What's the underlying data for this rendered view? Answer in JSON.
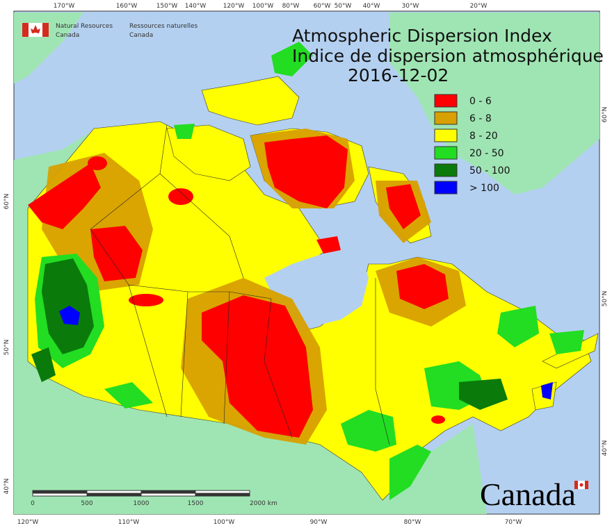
{
  "header": {
    "title": "Atmospheric Dispersion Index",
    "title_fr": "Indice de dispersion atmosphérique",
    "date": "2016-12-02"
  },
  "agency": {
    "name_en": [
      "Natural Resources",
      "Canada"
    ],
    "name_fr": [
      "Ressources naturelles",
      "Canada"
    ]
  },
  "legend": {
    "items": [
      {
        "label": "0 - 6",
        "color": "#ff0000"
      },
      {
        "label": "6 - 8",
        "color": "#d8a000"
      },
      {
        "label": "8 - 20",
        "color": "#ffff00"
      },
      {
        "label": "20 - 50",
        "color": "#22dd22"
      },
      {
        "label": "50 - 100",
        "color": "#0a7a0a"
      },
      {
        "label": "> 100",
        "color": "#0000ff"
      }
    ]
  },
  "graticule": {
    "top": [
      "170°W",
      "160°W",
      "150°W",
      "140°W",
      "120°W",
      "100°W",
      "80°W",
      "60°W",
      "50°W",
      "40°W",
      "30°W",
      "20°W"
    ],
    "bottom": [
      "120°W",
      "110°W",
      "100°W",
      "90°W",
      "80°W",
      "70°W"
    ],
    "left": [
      "60°N",
      "50°N",
      "40°N"
    ],
    "right": [
      "60°N",
      "50°N",
      "40°N"
    ]
  },
  "scale_bar": {
    "labels": [
      "0",
      "500",
      "1000",
      "1500",
      "2000 km"
    ]
  },
  "wordmark": "Canada"
}
